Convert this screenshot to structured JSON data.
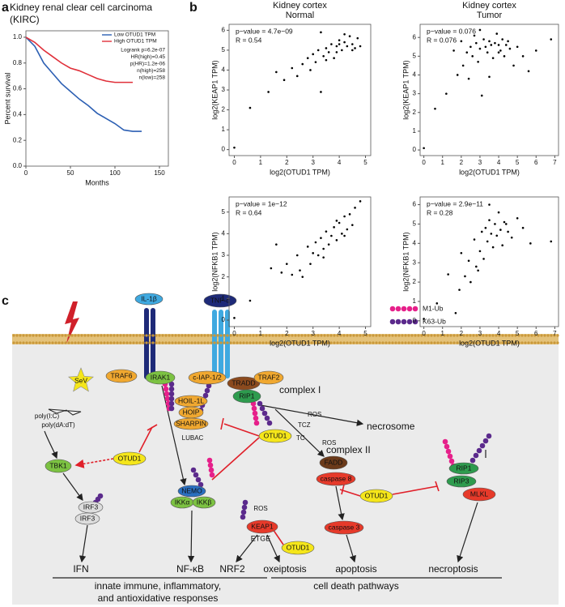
{
  "panels": [
    "a",
    "b",
    "c"
  ],
  "chart_data": [
    {
      "type": "line",
      "title": "Kidney renal clear cell carcinoma",
      "subtitle": "(KIRC)",
      "x": [
        0,
        10,
        20,
        30,
        40,
        50,
        60,
        70,
        80,
        90,
        100,
        110,
        120,
        130
      ],
      "series": [
        {
          "name": "Low OTUD1 TPM",
          "color": "#2c5fb3",
          "values": [
            1.0,
            0.93,
            0.8,
            0.72,
            0.64,
            0.58,
            0.52,
            0.47,
            0.41,
            0.37,
            0.33,
            0.28,
            0.27,
            0.27
          ]
        },
        {
          "name": "High OTUD1 TPM",
          "color": "#e0303a",
          "values": [
            1.0,
            0.96,
            0.9,
            0.85,
            0.8,
            0.76,
            0.74,
            0.71,
            0.68,
            0.66,
            0.65,
            0.65,
            0.65,
            null
          ]
        }
      ],
      "annotations": [
        "Logrank p=6.2e-07",
        "HR(high)=0.45",
        "p(HR)=1.2e-06",
        "n(high)=258",
        "n(low)=258"
      ],
      "xlabel": "Months",
      "ylabel": "Percent survival",
      "xlim": [
        0,
        160
      ],
      "xticks": [
        0,
        50,
        100,
        150
      ],
      "ylim": [
        0,
        1.05
      ],
      "yticks": [
        {
          "value": 0,
          "label": "0.0"
        },
        {
          "value": 0.2,
          "label": "0.2"
        },
        {
          "value": 0.4,
          "label": "0.4"
        },
        {
          "value": 0.6,
          "label": "0.6"
        },
        {
          "value": 0.8,
          "label": "0.8"
        },
        {
          "value": 1,
          "label": "1.0"
        }
      ]
    },
    {
      "type": "scatter",
      "title": "Kidney cortex",
      "subtitle": "Normal",
      "x": [
        0,
        0.6,
        1.3,
        1.6,
        1.9,
        2.2,
        2.4,
        2.6,
        2.8,
        2.9,
        3.0,
        3.1,
        3.2,
        3.3,
        3.4,
        3.5,
        3.6,
        3.7,
        3.8,
        3.9,
        4.0,
        4.1,
        4.2,
        4.3,
        4.4,
        4.5,
        4.6,
        4.7,
        3.3,
        3.9,
        4.2,
        4.5,
        4.0,
        3.5,
        4.8
      ],
      "values": [
        0.1,
        2.1,
        2.9,
        3.9,
        3.5,
        4.1,
        3.7,
        4.3,
        4.6,
        4.0,
        4.8,
        4.4,
        5.0,
        2.9,
        4.7,
        5.1,
        4.9,
        5.3,
        4.6,
        5.2,
        5.5,
        5.0,
        5.4,
        5.2,
        5.7,
        5.3,
        5.1,
        5.6,
        5.9,
        4.9,
        5.8,
        5.0,
        5.3,
        4.5,
        5.2
      ],
      "annotations": [
        "p−value = 4.7e−09",
        "R = 0.54"
      ],
      "xlabel": "log2(OTUD1 TPM)",
      "ylabel": "log2(KEAP1 TPM)",
      "xlim": [
        -0.2,
        5.2
      ],
      "xticks": [
        0,
        1,
        2,
        3,
        4,
        5
      ],
      "ylim": [
        -0.3,
        6.3
      ],
      "yticks": [
        0,
        1,
        2,
        3,
        4,
        5,
        6
      ]
    },
    {
      "type": "scatter",
      "title": "Kidney cortex",
      "subtitle": "Tumor",
      "x": [
        0,
        0.6,
        1.2,
        1.6,
        1.8,
        2.0,
        2.1,
        2.3,
        2.4,
        2.5,
        2.6,
        2.7,
        2.8,
        2.9,
        3.0,
        3.1,
        3.2,
        3.3,
        3.4,
        3.5,
        3.6,
        3.7,
        3.8,
        3.9,
        4.0,
        4.1,
        4.2,
        4.3,
        4.4,
        4.5,
        4.6,
        4.8,
        5.0,
        5.3,
        5.6,
        6.0,
        6.8,
        3.0,
        3.5,
        4.0
      ],
      "values": [
        0.1,
        2.2,
        3.0,
        5.3,
        4.0,
        5.8,
        4.5,
        5.2,
        3.8,
        5.5,
        5.0,
        6.1,
        5.7,
        4.7,
        5.4,
        2.9,
        5.9,
        5.5,
        5.2,
        5.8,
        5.6,
        4.9,
        5.7,
        6.2,
        5.6,
        5.3,
        5.9,
        5.0,
        5.6,
        5.8,
        5.4,
        4.5,
        5.5,
        5.0,
        4.2,
        5.3,
        5.9,
        6.4,
        3.9,
        5.2
      ],
      "annotations": [
        "p−value = 0.076",
        "R = 0.076"
      ],
      "xlabel": "log2(OTUD1 TPM)",
      "ylabel": "log2(KEAP1 TPM)",
      "xlim": [
        -0.2,
        7.2
      ],
      "xticks": [
        0,
        1,
        2,
        3,
        4,
        5,
        6,
        7
      ],
      "ylim": [
        -0.3,
        6.7
      ],
      "yticks": [
        0,
        1,
        2,
        3,
        4,
        5,
        6
      ]
    },
    {
      "type": "scatter",
      "x": [
        0,
        0.6,
        1.4,
        1.6,
        1.8,
        2.0,
        2.2,
        2.4,
        2.5,
        2.6,
        2.8,
        2.9,
        3.0,
        3.1,
        3.2,
        3.3,
        3.4,
        3.5,
        3.6,
        3.7,
        3.8,
        3.9,
        4.0,
        4.1,
        4.2,
        4.3,
        4.4,
        4.5,
        4.6,
        4.8,
        3.4,
        3.9,
        4.2
      ],
      "values": [
        0.1,
        0.9,
        2.4,
        3.5,
        2.2,
        2.6,
        2.1,
        3.0,
        2.3,
        2.0,
        3.4,
        2.6,
        3.1,
        3.6,
        3.0,
        3.8,
        3.3,
        4.1,
        3.5,
        3.9,
        4.3,
        3.7,
        4.5,
        4.0,
        4.8,
        4.2,
        4.9,
        4.4,
        5.2,
        5.5,
        2.9,
        4.6,
        3.9
      ],
      "annotations": [
        "p−value = 1e−12",
        "R = 0.64"
      ],
      "xlabel": "log2(OTUD1 TPM)",
      "ylabel": "log2(NFKB1 TPM)",
      "xlim": [
        -0.2,
        5.2
      ],
      "xticks": [
        0,
        1,
        2,
        3,
        4,
        5
      ],
      "ylim": [
        -0.3,
        5.7
      ],
      "yticks": [
        0,
        1,
        2,
        3,
        4,
        5
      ]
    },
    {
      "type": "scatter",
      "x": [
        0,
        0.7,
        1.3,
        1.7,
        1.9,
        2.0,
        2.2,
        2.4,
        2.5,
        2.7,
        2.8,
        3.0,
        3.1,
        3.2,
        3.3,
        3.4,
        3.5,
        3.6,
        3.7,
        3.8,
        3.9,
        4.0,
        4.1,
        4.2,
        4.3,
        4.5,
        4.7,
        5.0,
        5.3,
        5.7,
        6.8,
        3.5,
        2.9,
        4.4
      ],
      "values": [
        0.1,
        0.9,
        2.4,
        0.4,
        1.6,
        3.5,
        2.3,
        3.1,
        2.0,
        4.2,
        2.8,
        3.6,
        4.6,
        3.2,
        4.8,
        4.1,
        5.2,
        4.5,
        3.8,
        5.0,
        4.4,
        5.6,
        4.7,
        3.9,
        5.1,
        4.6,
        4.3,
        5.3,
        4.8,
        4.0,
        4.1,
        6.0,
        2.6,
        5.0
      ],
      "annotations": [
        "p−value = 2.9e−11",
        "R = 0.28"
      ],
      "xlabel": "log2(OTUD1 TPM)",
      "ylabel": "log2(NFKB1 TPM)",
      "xlim": [
        -0.2,
        7.2
      ],
      "xticks": [
        0,
        1,
        2,
        3,
        4,
        5,
        6,
        7
      ],
      "ylim": [
        -0.3,
        6.4
      ],
      "yticks": [
        0,
        1,
        2,
        3,
        4,
        5,
        6
      ]
    }
  ],
  "diagram": {
    "labels": [
      "IL-1β",
      "TNF-α",
      "M1-Ub",
      "K63-Ub",
      "TRAF6",
      "IRAK1",
      "c-IAP-1/2",
      "TRADD",
      "TRAF2",
      "RIP1",
      "complex I",
      "ROS",
      "TCZ",
      "TC",
      "ROS",
      "necrosome",
      "complex II",
      "HOIL-1L",
      "HOIP",
      "SHARPIN",
      "LUBAC",
      "SeV",
      "poly(I:C)",
      "poly(dA:dT)",
      "OTUD1",
      "TBK1",
      "OTUD1",
      "FADD",
      "caspase 8",
      "OTUD1",
      "RIP1",
      "RIP3",
      "MLKL",
      "NEMO",
      "IKKα",
      "IKKβ",
      "ROS",
      "KEAP1",
      "ETGE",
      "OTUD1",
      "IRF3",
      "IRF3",
      "caspase 3",
      "IFN",
      "NF-κB",
      "NRF2",
      "oxeiptosis",
      "apoptosis",
      "necroptosis",
      "innate immune, inflammatory,",
      "and antioxidative responses",
      "cell death pathways"
    ]
  }
}
